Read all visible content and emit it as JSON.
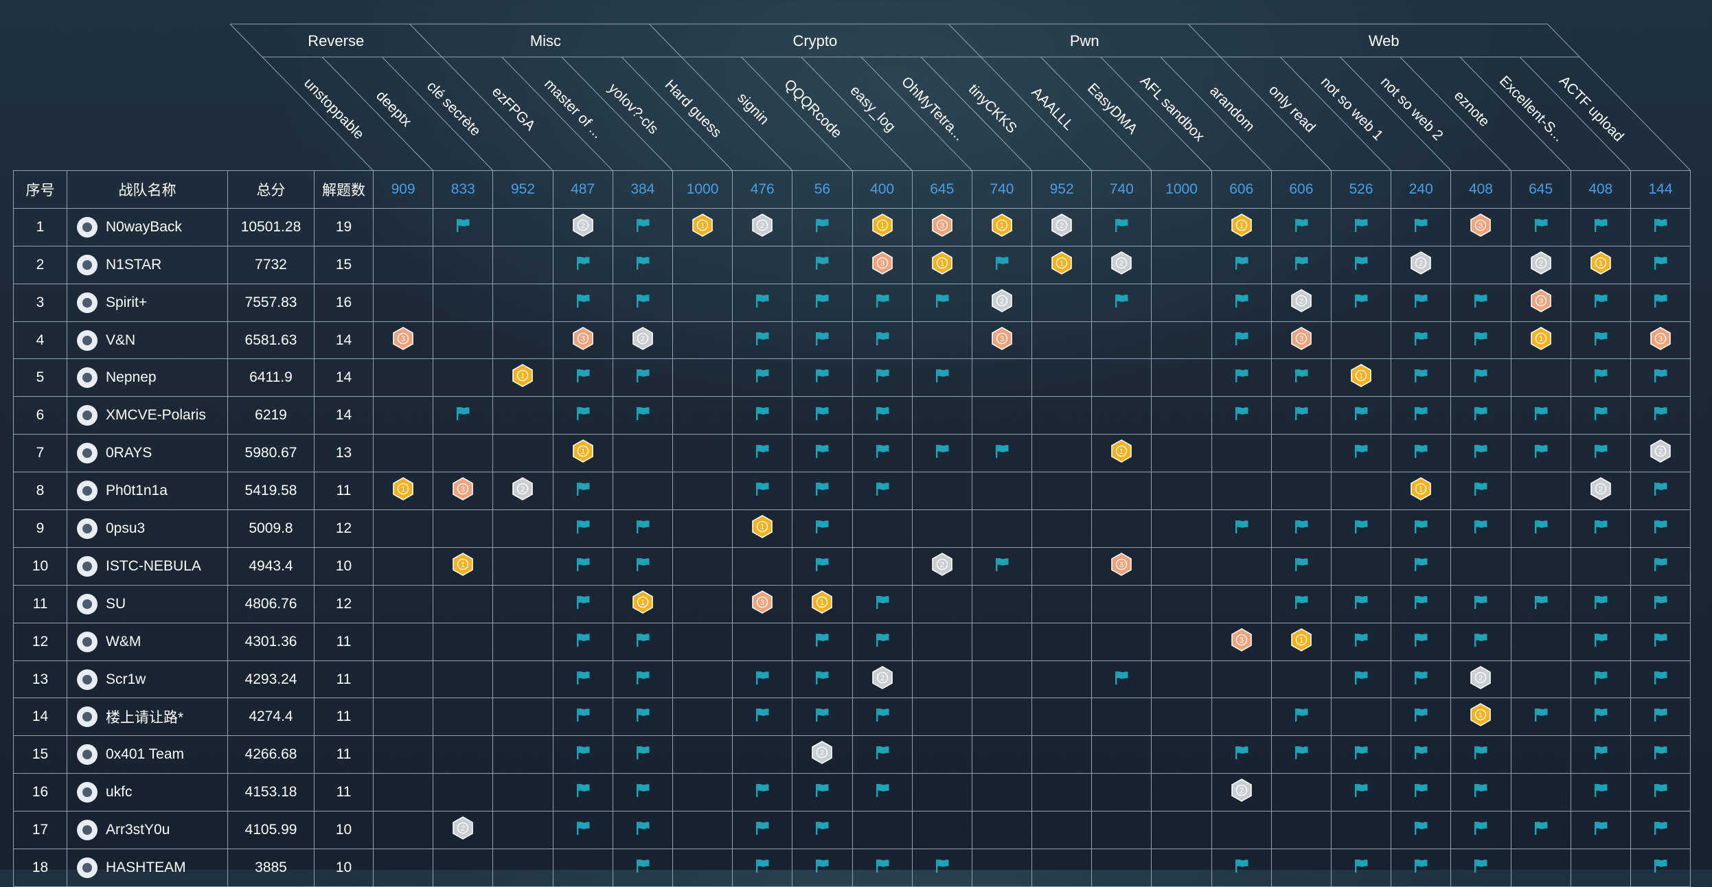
{
  "header": {
    "rank": "序号",
    "team": "战队名称",
    "score": "总分",
    "solved": "解题数"
  },
  "categories": [
    "Reverse",
    "Misc",
    "Crypto",
    "Pwn",
    "Web"
  ],
  "challenges": [
    {
      "name": "unstoppable",
      "points": "909"
    },
    {
      "name": "deeptx",
      "points": "833"
    },
    {
      "name": "clé secrète",
      "points": "952"
    },
    {
      "name": "ezFPGA",
      "points": "487"
    },
    {
      "name": "master of ...",
      "points": "384"
    },
    {
      "name": "yolov?-cls",
      "points": "1000"
    },
    {
      "name": "Hard guess",
      "points": "476"
    },
    {
      "name": "signin",
      "points": "56"
    },
    {
      "name": "QQQRcode",
      "points": "400"
    },
    {
      "name": "easy_log",
      "points": "645"
    },
    {
      "name": "OhMyTetra...",
      "points": "740"
    },
    {
      "name": "tinyCKKS",
      "points": "952"
    },
    {
      "name": "AAALLL",
      "points": "740"
    },
    {
      "name": "EasyDMA",
      "points": "1000"
    },
    {
      "name": "AFL sandbox",
      "points": "606"
    },
    {
      "name": "arandom",
      "points": "606"
    },
    {
      "name": "only read",
      "points": "526"
    },
    {
      "name": "not so web 1",
      "points": "240"
    },
    {
      "name": "not so web 2",
      "points": "408"
    },
    {
      "name": "eznote",
      "points": "645"
    },
    {
      "name": "Excellent-S...",
      "points": "408"
    },
    {
      "name": "ACTF upload",
      "points": "144"
    }
  ],
  "rows": [
    {
      "rank": "1",
      "team": "N0wayBack",
      "score": "10501.28",
      "solved": "19",
      "cells": [
        "",
        "f",
        "",
        "2",
        "f",
        "1",
        "2",
        "f",
        "1",
        "3",
        "1",
        "2",
        "f",
        "",
        "1",
        "f",
        "f",
        "f",
        "3",
        "f",
        "f",
        "f"
      ]
    },
    {
      "rank": "2",
      "team": "N1STAR",
      "score": "7732",
      "solved": "15",
      "cells": [
        "",
        "",
        "",
        "f",
        "f",
        "",
        "",
        "f",
        "3",
        "1",
        "f",
        "1",
        "2",
        "",
        "f",
        "f",
        "f",
        "2",
        "",
        "2",
        "1",
        "f"
      ]
    },
    {
      "rank": "3",
      "team": "Spirit+",
      "score": "7557.83",
      "solved": "16",
      "cells": [
        "",
        "",
        "",
        "f",
        "f",
        "",
        "f",
        "f",
        "f",
        "f",
        "2",
        "",
        "f",
        "",
        "f",
        "2",
        "f",
        "f",
        "f",
        "3",
        "f",
        "f"
      ]
    },
    {
      "rank": "4",
      "team": "V&N",
      "score": "6581.63",
      "solved": "14",
      "cells": [
        "3",
        "",
        "",
        "3",
        "2",
        "",
        "f",
        "f",
        "f",
        "",
        "3",
        "",
        "",
        "",
        "f",
        "3",
        "",
        "f",
        "f",
        "1",
        "f",
        "3"
      ]
    },
    {
      "rank": "5",
      "team": "Nepnep",
      "score": "6411.9",
      "solved": "14",
      "cells": [
        "",
        "",
        "1",
        "f",
        "f",
        "",
        "f",
        "f",
        "f",
        "f",
        "",
        "",
        "",
        "",
        "f",
        "f",
        "1",
        "f",
        "f",
        "",
        "f",
        "f"
      ]
    },
    {
      "rank": "6",
      "team": "XMCVE-Polaris",
      "score": "6219",
      "solved": "14",
      "cells": [
        "",
        "f",
        "",
        "f",
        "f",
        "",
        "f",
        "f",
        "f",
        "",
        "",
        "",
        "",
        "",
        "f",
        "f",
        "f",
        "f",
        "f",
        "f",
        "f",
        "f"
      ]
    },
    {
      "rank": "7",
      "team": "0RAYS",
      "score": "5980.67",
      "solved": "13",
      "cells": [
        "",
        "",
        "",
        "1",
        "",
        "",
        "f",
        "f",
        "f",
        "f",
        "f",
        "",
        "1",
        "",
        "",
        "",
        "f",
        "f",
        "f",
        "f",
        "f",
        "2"
      ]
    },
    {
      "rank": "8",
      "team": "Ph0t1n1a",
      "score": "5419.58",
      "solved": "11",
      "cells": [
        "1",
        "3",
        "2",
        "f",
        "",
        "",
        "f",
        "f",
        "f",
        "",
        "",
        "",
        "",
        "",
        "",
        "",
        "",
        "1",
        "f",
        "",
        "2",
        "f"
      ]
    },
    {
      "rank": "9",
      "team": "0psu3",
      "score": "5009.8",
      "solved": "12",
      "cells": [
        "",
        "",
        "",
        "f",
        "f",
        "",
        "1",
        "f",
        "",
        "",
        "",
        "",
        "",
        "",
        "f",
        "f",
        "f",
        "f",
        "f",
        "f",
        "f",
        "f"
      ]
    },
    {
      "rank": "10",
      "team": "ISTC-NEBULA",
      "score": "4943.4",
      "solved": "10",
      "cells": [
        "",
        "1",
        "",
        "f",
        "f",
        "",
        "",
        "f",
        "",
        "2",
        "f",
        "",
        "3",
        "",
        "",
        "f",
        "",
        "f",
        "",
        "",
        "",
        "f"
      ]
    },
    {
      "rank": "11",
      "team": "SU",
      "score": "4806.76",
      "solved": "12",
      "cells": [
        "",
        "",
        "",
        "f",
        "1",
        "",
        "3",
        "1",
        "f",
        "",
        "",
        "",
        "",
        "",
        "",
        "f",
        "f",
        "f",
        "f",
        "f",
        "f",
        "f"
      ]
    },
    {
      "rank": "12",
      "team": "W&M",
      "score": "4301.36",
      "solved": "11",
      "cells": [
        "",
        "",
        "",
        "f",
        "f",
        "",
        "",
        "f",
        "f",
        "",
        "",
        "",
        "",
        "",
        "3",
        "1",
        "f",
        "f",
        "f",
        "",
        "f",
        "f"
      ]
    },
    {
      "rank": "13",
      "team": "Scr1w",
      "score": "4293.24",
      "solved": "11",
      "cells": [
        "",
        "",
        "",
        "f",
        "f",
        "",
        "f",
        "f",
        "2",
        "",
        "",
        "",
        "f",
        "",
        "",
        "",
        "f",
        "f",
        "2",
        "",
        "f",
        "f"
      ]
    },
    {
      "rank": "14",
      "team": "楼上请让路*",
      "score": "4274.4",
      "solved": "11",
      "cells": [
        "",
        "",
        "",
        "f",
        "f",
        "",
        "f",
        "f",
        "f",
        "",
        "",
        "",
        "",
        "",
        "",
        "f",
        "",
        "f",
        "1",
        "f",
        "f",
        "f"
      ]
    },
    {
      "rank": "15",
      "team": "0x401 Team",
      "score": "4266.68",
      "solved": "11",
      "cells": [
        "",
        "",
        "",
        "f",
        "f",
        "",
        "",
        "2",
        "f",
        "",
        "",
        "",
        "",
        "",
        "f",
        "f",
        "f",
        "f",
        "f",
        "",
        "f",
        "f"
      ]
    },
    {
      "rank": "16",
      "team": "ukfc",
      "score": "4153.18",
      "solved": "11",
      "cells": [
        "",
        "",
        "",
        "f",
        "f",
        "",
        "f",
        "f",
        "f",
        "",
        "",
        "",
        "",
        "",
        "2",
        "",
        "f",
        "f",
        "f",
        "",
        "f",
        "f"
      ]
    },
    {
      "rank": "17",
      "team": "Arr3stY0u",
      "score": "4105.99",
      "solved": "10",
      "cells": [
        "",
        "2",
        "",
        "f",
        "f",
        "",
        "f",
        "f",
        "",
        "",
        "",
        "",
        "",
        "",
        "",
        "",
        "",
        "f",
        "f",
        "f",
        "f",
        "f"
      ]
    },
    {
      "rank": "18",
      "team": "HASHTEAM",
      "score": "3885",
      "solved": "10",
      "cells": [
        "",
        "",
        "",
        "",
        "f",
        "",
        "f",
        "f",
        "f",
        "f",
        "",
        "",
        "",
        "",
        "f",
        "",
        "f",
        "f",
        "f",
        "",
        "",
        "f"
      ]
    }
  ],
  "colors": {
    "flag": "#1fa3b8",
    "gold": "#f6b21e",
    "silver": "#c9ced3",
    "bronze": "#f0a37a",
    "points": "#4a9fe4",
    "grid": "#8fa3b3"
  },
  "icons": {
    "solved": "flag-icon",
    "first": "gold-medal-icon",
    "second": "silver-medal-icon",
    "third": "bronze-medal-icon"
  }
}
